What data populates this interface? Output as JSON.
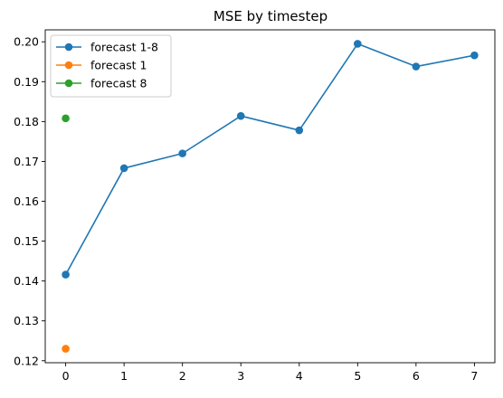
{
  "chart_data": {
    "type": "line",
    "title": "MSE by timestep",
    "xlabel": "",
    "ylabel": "",
    "xlim": [
      -0.35,
      7.35
    ],
    "ylim": [
      0.1195,
      0.203
    ],
    "x_ticks": [
      0,
      1,
      2,
      3,
      4,
      5,
      6,
      7
    ],
    "y_ticks": [
      0.12,
      0.13,
      0.14,
      0.15,
      0.16,
      0.17,
      0.18,
      0.19,
      0.2
    ],
    "y_tick_labels": [
      "0.12",
      "0.13",
      "0.14",
      "0.15",
      "0.16",
      "0.17",
      "0.18",
      "0.19",
      "0.20"
    ],
    "grid": false,
    "legend_position": "top-left",
    "series": [
      {
        "name": "forecast 1-8",
        "color": "#1f77b4",
        "x": [
          0,
          1,
          2,
          3,
          4,
          5,
          6,
          7
        ],
        "y": [
          0.1416,
          0.1683,
          0.172,
          0.1814,
          0.1778,
          0.1995,
          0.1938,
          0.1966
        ]
      },
      {
        "name": "forecast 1",
        "color": "#ff7f0e",
        "x": [
          0
        ],
        "y": [
          0.123
        ]
      },
      {
        "name": "forecast 8",
        "color": "#2ca02c",
        "x": [
          0
        ],
        "y": [
          0.1808
        ]
      }
    ]
  }
}
